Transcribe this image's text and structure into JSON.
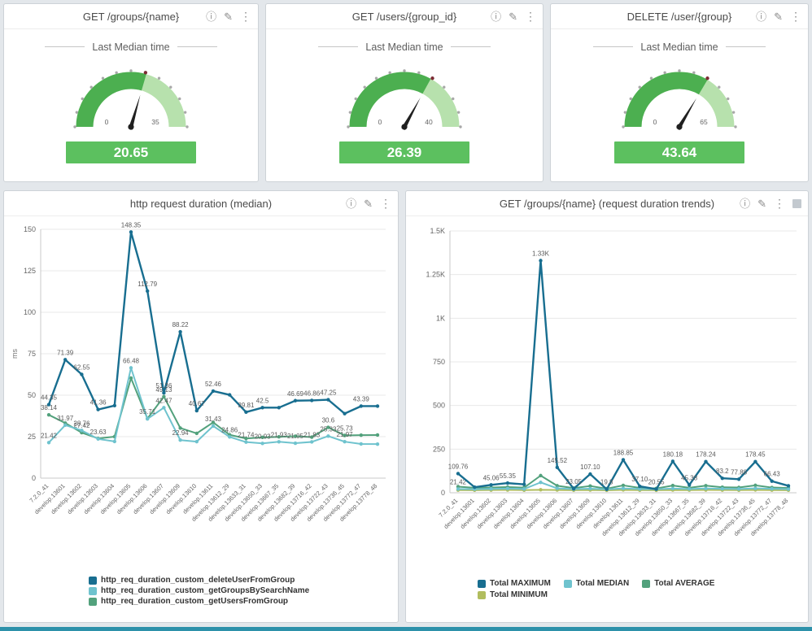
{
  "icons": {
    "info": "ⓘ",
    "edit": "✎",
    "menu": "⋮"
  },
  "theme": {
    "gauge_fill": "#4caf50",
    "gauge_rest": "#b7e1ad",
    "gauge_bar": "#5cc05f",
    "gauge_needle": "#202020",
    "tick_dot": "#a8a8a8",
    "tick_dot_active": "#7c2b34",
    "grid": "#e8e8e8",
    "axis": "#c9c9c9",
    "data_label": "#5a5a5a",
    "muted": "#666666",
    "page_bg": "#e3e7eb",
    "bottom_bar": "#2d91aa"
  },
  "chart_data": [
    {
      "type": "gauge",
      "title": "GET /groups/{name}",
      "label": "Last Median time",
      "min": 0,
      "max": 35,
      "value": 20.65
    },
    {
      "type": "gauge",
      "title": "GET /users/{group_id}",
      "label": "Last Median time",
      "min": 0,
      "max": 40,
      "value": 26.39
    },
    {
      "type": "gauge",
      "title": "DELETE /user/{group}",
      "label": "Last Median time",
      "min": 0,
      "max": 65,
      "value": 43.64
    },
    {
      "type": "line",
      "title": "http request duration (median)",
      "ylabel": "ms",
      "ylim": [
        0,
        150
      ],
      "yticks": [
        {
          "v": 0,
          "l": "0"
        },
        {
          "v": 25,
          "l": "25"
        },
        {
          "v": 50,
          "l": "50"
        },
        {
          "v": 75,
          "l": "75"
        },
        {
          "v": 100,
          "l": "100"
        },
        {
          "v": 125,
          "l": "125"
        },
        {
          "v": 150,
          "l": "150"
        }
      ],
      "categories": [
        "7.2.0_41",
        "develop.13601",
        "develop.13602",
        "develop.13603",
        "develop.13604",
        "develop.13605",
        "develop.13606",
        "develop.13607",
        "develop.13609",
        "develop.13610",
        "develop.13611",
        "develop.13612_29",
        "develop.13633_31",
        "develop.13650_33",
        "develop.13667_35",
        "develop.13682_39",
        "develop.13716_42",
        "develop.13722_43",
        "develop.13736_45",
        "develop.13772_47",
        "develop.13778_48"
      ],
      "legend_position": "bottom",
      "series": [
        {
          "name": "http_req_duration_custom_deleteUserFromGroup",
          "color": "#186e90",
          "width": 2.4,
          "values": [
            44.35,
            71.39,
            62.55,
            41.36,
            43.7,
            148.35,
            112.79,
            51.36,
            88.22,
            40.67,
            52.46,
            50.2,
            39.81,
            42.5,
            42.5,
            46.69,
            46.86,
            47.25,
            38.9,
            43.39,
            43.39
          ],
          "labels": [
            "44.35",
            "71.39",
            "62.55",
            "41.36",
            "",
            "148.35",
            "112.79",
            "51.36",
            "88.22",
            "40.67",
            "52.46",
            "",
            "39.81",
            "42.5",
            "",
            "46.69",
            "46.86",
            "47.25",
            "",
            "43.39",
            ""
          ]
        },
        {
          "name": "http_req_duration_custom_getGroupsBySearchName",
          "color": "#6fc3ce",
          "width": 2,
          "values": [
            21.42,
            31.97,
            28.76,
            23.63,
            22.1,
            66.48,
            35.71,
            42.47,
            22.94,
            22.0,
            31.43,
            24.86,
            21.74,
            20.93,
            21.93,
            21.05,
            21.83,
            25.33,
            21.97,
            20.6,
            20.5
          ],
          "labels": [
            "21.42",
            "31.97",
            "28.76",
            "23.63",
            "",
            "66.48",
            "35.71",
            "42.47",
            "22.94",
            "",
            "31.43",
            "24.86",
            "21.74",
            "20.93",
            "21.93",
            "21.05",
            "21.83",
            "25.33",
            "21.97",
            "",
            ""
          ]
        },
        {
          "name": "http_req_duration_custom_getUsersFromGroup",
          "color": "#52a17c",
          "width": 2,
          "values": [
            38.14,
            33.2,
            27.42,
            23.9,
            25.0,
            60.3,
            35.9,
            49.13,
            30.2,
            27.0,
            33.6,
            26.1,
            23.9,
            24.6,
            24.9,
            25.3,
            24.7,
            30.6,
            25.73,
            25.9,
            26.0
          ],
          "labels": [
            "38.14",
            "",
            "27.42",
            "",
            "",
            "",
            "",
            "49.13",
            "",
            "",
            "",
            "",
            "",
            "",
            "",
            "",
            "",
            "30.6",
            "25.73",
            "",
            ""
          ]
        }
      ]
    },
    {
      "type": "line",
      "title": "GET /groups/{name} (request duration trends)",
      "ylabel": "",
      "ylim": [
        0,
        1500
      ],
      "yticks": [
        {
          "v": 0,
          "l": "0"
        },
        {
          "v": 250,
          "l": "250"
        },
        {
          "v": 500,
          "l": "500"
        },
        {
          "v": 750,
          "l": "750"
        },
        {
          "v": 1000,
          "l": "1K"
        },
        {
          "v": 1250,
          "l": "1.25K"
        },
        {
          "v": 1500,
          "l": "1.5K"
        }
      ],
      "categories": [
        "7.2.0_41",
        "develop.13601",
        "develop.13602",
        "develop.13603",
        "develop.13604",
        "develop.13605",
        "develop.13606",
        "develop.13607",
        "develop.13609",
        "develop.13610",
        "develop.13611",
        "develop.13612_29",
        "develop.13633_31",
        "develop.13650_33",
        "develop.13667_35",
        "develop.13682_39",
        "develop.13716_42",
        "develop.13722_43",
        "develop.13736_45",
        "develop.13772_47",
        "develop.13778_48"
      ],
      "legend_position": "bottom",
      "series": [
        {
          "name": "Total MAXIMUM",
          "color": "#186e90",
          "width": 2.4,
          "values": [
            109.76,
            32.0,
            45.06,
            55.35,
            48.0,
            1330,
            145.52,
            23.05,
            107.1,
            19.8,
            188.85,
            37.1,
            20.55,
            180.18,
            45.38,
            178.24,
            83.2,
            77.88,
            178.45,
            66.43,
            40.0
          ],
          "labels": [
            "109.76",
            "",
            "45.06",
            "55.35",
            "",
            "1.33K",
            "145.52",
            "23.05",
            "107.10",
            "19.8",
            "188.85",
            "37.10",
            "20.55",
            "180.18",
            "45.38",
            "178.24",
            "83.2",
            "77.88",
            "178.45",
            "66.43",
            ""
          ]
        },
        {
          "name": "Total MEDIAN",
          "color": "#6fc3ce",
          "width": 2,
          "values": [
            21.42,
            20.6,
            22.4,
            24.0,
            21.8,
            59.4,
            25.1,
            20.9,
            23.5,
            19.6,
            24.7,
            21.3,
            20.2,
            23.9,
            21.7,
            24.3,
            22.8,
            21.5,
            24.9,
            22.7,
            20.9
          ],
          "labels": [
            "21.42",
            "",
            "",
            "",
            "",
            "",
            "",
            "",
            "",
            "",
            "",
            "",
            "",
            "",
            "",
            "",
            "",
            "",
            "",
            "",
            ""
          ]
        },
        {
          "name": "Total AVERAGE",
          "color": "#52a17c",
          "width": 2,
          "values": [
            35.2,
            28.3,
            30.2,
            32.5,
            29.6,
            98.4,
            40.2,
            26.8,
            38.7,
            23.5,
            42.2,
            27.9,
            24.8,
            41.3,
            28.4,
            40.7,
            31.6,
            30.3,
            42.5,
            30.0,
            27.1
          ],
          "labels": []
        },
        {
          "name": "Total MINIMUM",
          "color": "#b1bd5e",
          "width": 2,
          "values": [
            15.3,
            14.8,
            15.6,
            16.2,
            15.0,
            17.1,
            15.9,
            14.6,
            15.8,
            14.2,
            16.4,
            15.1,
            14.4,
            16.0,
            15.2,
            16.1,
            15.5,
            15.0,
            16.3,
            15.4,
            14.7
          ],
          "labels": []
        }
      ]
    }
  ]
}
